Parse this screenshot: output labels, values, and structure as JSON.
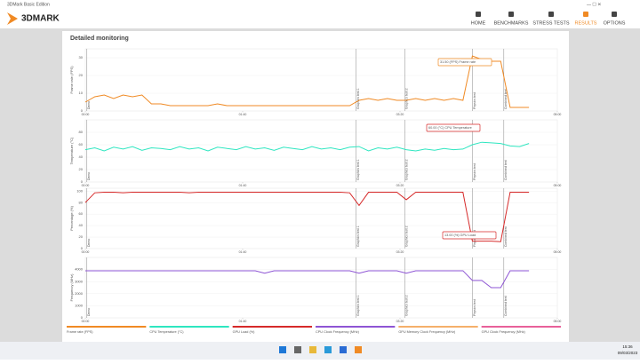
{
  "window": {
    "title": "3DMark Basic Edition"
  },
  "app": {
    "logo": "3DMARK"
  },
  "nav": [
    {
      "label": "HOME"
    },
    {
      "label": "BENCHMARKS"
    },
    {
      "label": "STRESS TESTS"
    },
    {
      "label": "RESULTS"
    },
    {
      "label": "OPTIONS"
    }
  ],
  "section": {
    "title": "Detailed monitoring"
  },
  "timeline": {
    "xlim": [
      0,
      300
    ],
    "xticks": [
      {
        "value": 0,
        "label": "00:00"
      },
      {
        "value": 100,
        "label": "01:40"
      },
      {
        "value": 200,
        "label": "03:20"
      },
      {
        "value": 300,
        "label": "05:00"
      }
    ],
    "x": [
      0,
      6,
      12,
      18,
      24,
      30,
      36,
      42,
      48,
      54,
      60,
      66,
      72,
      78,
      84,
      90,
      96,
      102,
      108,
      114,
      120,
      126,
      132,
      138,
      144,
      150,
      156,
      162,
      168,
      174,
      180,
      186,
      192,
      198,
      204,
      210,
      216,
      222,
      228,
      234,
      240,
      246,
      252,
      258,
      264,
      270,
      276,
      282
    ],
    "markers": [
      {
        "label": "Demo",
        "x": 1
      },
      {
        "label": "Graphics test 1",
        "x": 172
      },
      {
        "label": "Graphics test 2",
        "x": 203
      },
      {
        "label": "Physics test",
        "x": 246
      },
      {
        "label": "Combined test",
        "x": 266
      }
    ]
  },
  "charts": [
    {
      "type": "line",
      "y_label": "Frame rate (FPS)",
      "ylim": [
        0,
        35
      ],
      "yticks": [
        0,
        10,
        20,
        30
      ],
      "series": [
        {
          "name": "Frame rate (FPS)",
          "color": "#f08a24",
          "values": [
            5,
            8,
            9,
            7,
            9,
            8,
            9,
            4,
            4,
            3,
            3,
            3,
            3,
            3,
            4,
            3,
            3,
            3,
            3,
            3,
            3,
            3,
            3,
            3,
            3,
            3,
            3,
            3,
            3,
            6,
            7,
            6,
            7,
            6,
            6,
            7,
            6,
            7,
            6,
            7,
            6,
            31,
            29,
            28,
            28,
            2,
            2,
            2
          ]
        }
      ],
      "annotation": "31.50 (FPS) Frame rate"
    },
    {
      "type": "line",
      "y_label": "Temperature (°C)",
      "ylim": [
        0,
        100
      ],
      "yticks": [
        0,
        20,
        40,
        60,
        80
      ],
      "series": [
        {
          "name": "CPU Temperature (°C)",
          "color": "#2ee6c0",
          "values": [
            52,
            55,
            50,
            56,
            53,
            57,
            51,
            55,
            54,
            52,
            57,
            53,
            55,
            50,
            56,
            54,
            52,
            57,
            53,
            55,
            51,
            56,
            54,
            52,
            57,
            53,
            55,
            52,
            56,
            57,
            50,
            55,
            53,
            56,
            52,
            50,
            53,
            51,
            54,
            52,
            53,
            60,
            64,
            63,
            62,
            58,
            57,
            62
          ]
        }
      ],
      "annotation": "60.00 (°C) CPU Temperature"
    },
    {
      "type": "line",
      "y_label": "Percentage (%)",
      "ylim": [
        0,
        105
      ],
      "yticks": [
        0,
        20,
        40,
        60,
        80,
        100
      ],
      "series": [
        {
          "name": "GPU Load (%)",
          "color": "#d62a2a",
          "values": [
            80,
            97,
            98,
            98,
            97,
            98,
            98,
            98,
            98,
            98,
            98,
            97,
            98,
            98,
            98,
            98,
            98,
            98,
            98,
            98,
            98,
            98,
            98,
            98,
            98,
            98,
            98,
            98,
            97,
            75,
            98,
            98,
            98,
            98,
            85,
            98,
            98,
            98,
            98,
            98,
            98,
            13,
            13,
            13,
            12,
            98,
            98,
            98
          ]
        }
      ],
      "annotation": "13.00 (%) GPU Load"
    },
    {
      "type": "line",
      "y_label": "Frequency (MHz)",
      "ylim": [
        0,
        5000
      ],
      "yticks": [
        0,
        1000,
        2000,
        3000,
        4000
      ],
      "series": [
        {
          "name": "CPU Clock Frequency (MHz)",
          "color": "#8e55d4",
          "values": [
            3900,
            3900,
            3900,
            3900,
            3900,
            3900,
            3900,
            3900,
            3900,
            3900,
            3900,
            3900,
            3900,
            3900,
            3900,
            3900,
            3900,
            3900,
            3900,
            3700,
            3900,
            3900,
            3900,
            3900,
            3900,
            3900,
            3900,
            3900,
            3900,
            3700,
            3900,
            3900,
            3900,
            3900,
            3700,
            3900,
            3900,
            3900,
            3900,
            3900,
            3900,
            3100,
            3100,
            2500,
            2500,
            3900,
            3900,
            3900
          ]
        }
      ]
    }
  ],
  "legend": [
    {
      "label": "Frame rate (FPS)",
      "color": "#f08a24"
    },
    {
      "label": "CPU Temperature (°C)",
      "color": "#2ee6c0"
    },
    {
      "label": "GPU Load (%)",
      "color": "#d62a2a"
    },
    {
      "label": "CPU Clock Frequency (MHz)",
      "color": "#8e55d4"
    },
    {
      "label": "GPU Memory Clock Frequency (MHz)",
      "color": "#f5b06a"
    },
    {
      "label": "GPU Clock Frequency (MHz)",
      "color": "#e8609a"
    }
  ],
  "taskbar": {
    "time": "15:36",
    "date": "09/03/2023"
  }
}
